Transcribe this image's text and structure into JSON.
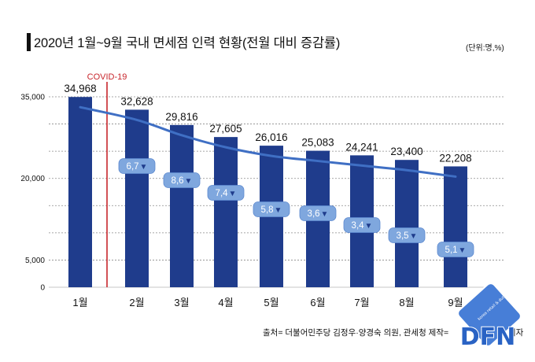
{
  "chart_data": {
    "type": "bar",
    "title": "2020년 1월~9월 국내 면세점 인력 현황(전월 대비 증감률)",
    "unit": "(단위:명,%)",
    "categories": [
      "1월",
      "2월",
      "3월",
      "4월",
      "5월",
      "6월",
      "7월",
      "8월",
      "9월"
    ],
    "values": [
      34968,
      32628,
      29816,
      27605,
      26016,
      25083,
      24241,
      23400,
      22208
    ],
    "value_labels": [
      "34,968",
      "32,628",
      "29,816",
      "27,605",
      "26,016",
      "25,083",
      "24,241",
      "23,400",
      "22,208"
    ],
    "change_pct": [
      null,
      -6.7,
      -8.6,
      -7.4,
      -5.8,
      -3.6,
      -3.4,
      -3.5,
      -5.1
    ],
    "change_labels": [
      null,
      "6,7",
      "8,6",
      "7,4",
      "5,8",
      "3,6",
      "3,4",
      "3,5",
      "5,1"
    ],
    "change_marker": "▼",
    "y_ticks": [
      35000,
      20000,
      5000,
      0
    ],
    "y_tick_labels": [
      "35,000",
      "20,000",
      "5,000",
      "0"
    ],
    "ylim": [
      0,
      35000
    ],
    "grid": true,
    "grid_step": 5000,
    "trend_line": true,
    "annotation": {
      "label": "COVID-19",
      "after_index": 0
    },
    "colors": {
      "bar": "#1f3c8c",
      "trend_line": "#3f6fc4",
      "badge": "#7fa7de",
      "badge_border": "#5d89cf",
      "annotation": "#c8262c",
      "marker": "#1f3c8c"
    }
  },
  "footer": {
    "source": "출처= 더불어민주당 김정우·양경숙 의원, 관세청 제작=",
    "byline_tail": "기자"
  },
  "logo": {
    "text": "DFN",
    "tagline": "korea retail & duty free news"
  }
}
